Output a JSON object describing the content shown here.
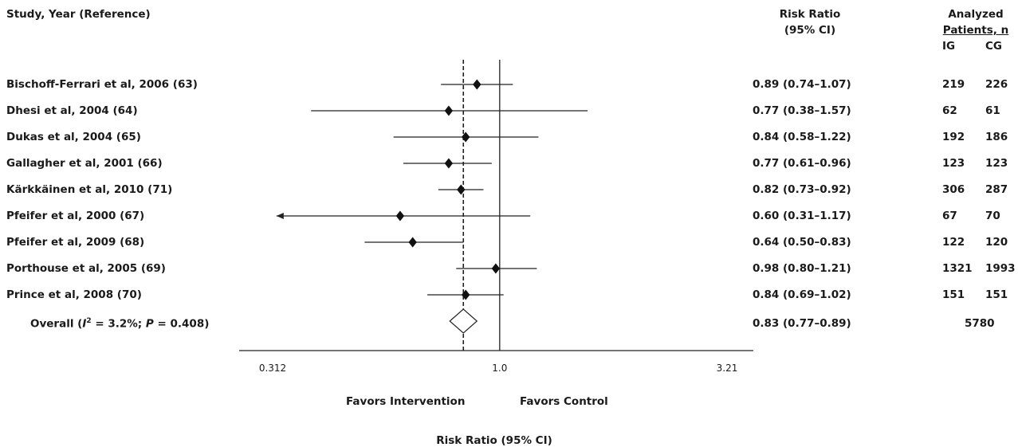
{
  "headers": {
    "study": "Study, Year (Reference)",
    "rr_line1": "Risk Ratio",
    "rr_line2": "(95% CI)",
    "analyzed_line1": "Analyzed",
    "analyzed_line2": "Patients, n",
    "ig": "IG",
    "cg": "CG"
  },
  "chart_data": {
    "type": "forest",
    "scale": "log",
    "xlim": [
      0.312,
      3.21
    ],
    "xticks": [
      "0.312",
      "1.0",
      "3.21"
    ],
    "xlabel": "Risk Ratio (95% CI)",
    "favors_left": "Favors Intervention",
    "favors_right": "Favors Control",
    "overall_rr": 0.83,
    "studies": [
      {
        "label": "Bischoff-Ferrari et al, 2006 (63)",
        "rr": 0.89,
        "lo": 0.74,
        "hi": 1.07,
        "ci_text": "0.89 (0.74–1.07)",
        "ig": "219",
        "cg": "226"
      },
      {
        "label": "Dhesi et al, 2004 (64)",
        "rr": 0.77,
        "lo": 0.38,
        "hi": 1.57,
        "ci_text": "0.77 (0.38–1.57)",
        "ig": "62",
        "cg": "61"
      },
      {
        "label": "Dukas et al, 2004 (65)",
        "rr": 0.84,
        "lo": 0.58,
        "hi": 1.22,
        "ci_text": "0.84 (0.58–1.22)",
        "ig": "192",
        "cg": "186"
      },
      {
        "label": "Gallagher et al, 2001 (66)",
        "rr": 0.77,
        "lo": 0.61,
        "hi": 0.96,
        "ci_text": "0.77 (0.61–0.96)",
        "ig": "123",
        "cg": "123"
      },
      {
        "label": "Kärkkäinen et al, 2010 (71)",
        "rr": 0.82,
        "lo": 0.73,
        "hi": 0.92,
        "ci_text": "0.82 (0.73–0.92)",
        "ig": "306",
        "cg": "287"
      },
      {
        "label": "Pfeifer et al, 2000 (67)",
        "rr": 0.6,
        "lo": 0.31,
        "hi": 1.17,
        "ci_text": "0.60 (0.31–1.17)",
        "ig": "67",
        "cg": "70"
      },
      {
        "label": "Pfeifer et al, 2009 (68)",
        "rr": 0.64,
        "lo": 0.5,
        "hi": 0.83,
        "ci_text": "0.64 (0.50–0.83)",
        "ig": "122",
        "cg": "120"
      },
      {
        "label": "Porthouse et al, 2005 (69)",
        "rr": 0.98,
        "lo": 0.8,
        "hi": 1.21,
        "ci_text": "0.98 (0.80–1.21)",
        "ig": "1321",
        "cg": "1993"
      },
      {
        "label": "Prince et al, 2008 (70)",
        "rr": 0.84,
        "lo": 0.69,
        "hi": 1.02,
        "ci_text": "0.84 (0.69–1.02)",
        "ig": "151",
        "cg": "151"
      }
    ],
    "overall": {
      "label_prefix": "Overall  (",
      "i_symbol": "I",
      "sup": "2",
      "label_mid": " = 3.2%; ",
      "p_symbol": "P",
      "label_suffix": " = 0.408)",
      "rr": 0.83,
      "lo": 0.77,
      "hi": 0.89,
      "ci_text": "0.83 (0.77–0.89)",
      "total": "5780"
    }
  }
}
